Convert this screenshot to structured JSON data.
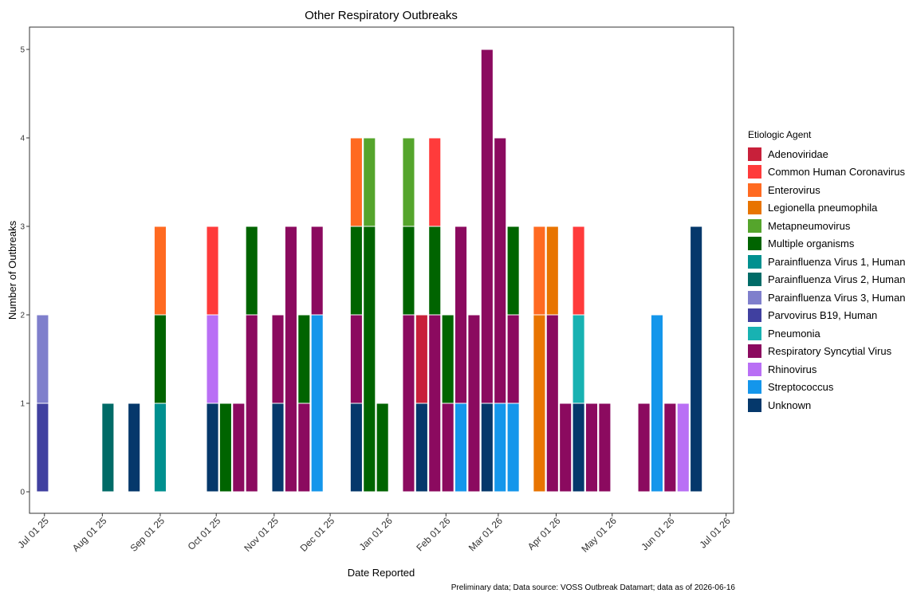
{
  "chart_data": {
    "type": "bar",
    "stacked": true,
    "title": "Other Respiratory Outbreaks",
    "xlabel": "Date Reported",
    "ylabel": "Number of Outbreaks",
    "ylim": [
      0,
      5.5
    ],
    "y_ticks": [
      0,
      1,
      2,
      3,
      4,
      5
    ],
    "x_range": [
      "2025-06-23",
      "2026-07-05"
    ],
    "x_ticks": [
      {
        "date": "2025-07-01",
        "label": "Jul 01 25"
      },
      {
        "date": "2025-08-01",
        "label": "Aug 01 25"
      },
      {
        "date": "2025-09-01",
        "label": "Sep 01 25"
      },
      {
        "date": "2025-10-01",
        "label": "Oct 01 25"
      },
      {
        "date": "2025-11-01",
        "label": "Nov 01 25"
      },
      {
        "date": "2025-12-01",
        "label": "Dec 01 25"
      },
      {
        "date": "2026-01-01",
        "label": "Jan 01 26"
      },
      {
        "date": "2026-02-01",
        "label": "Feb 01 26"
      },
      {
        "date": "2026-03-01",
        "label": "Mar 01 26"
      },
      {
        "date": "2026-04-01",
        "label": "Apr 01 26"
      },
      {
        "date": "2026-05-01",
        "label": "May 01 26"
      },
      {
        "date": "2026-06-01",
        "label": "Jun 01 26"
      },
      {
        "date": "2026-07-01",
        "label": "Jul 01 26"
      }
    ],
    "grid": false,
    "legend_position": "right",
    "legend_title": "Etiologic Agent",
    "series": [
      {
        "name": "Adenoviridae",
        "color": "#C8203A"
      },
      {
        "name": "Common Human Coronavirus",
        "color": "#FF3B3B"
      },
      {
        "name": "Enterovirus",
        "color": "#FF6A21"
      },
      {
        "name": "Legionella pneumophila",
        "color": "#E87400"
      },
      {
        "name": "Metapneumovirus",
        "color": "#55A52C"
      },
      {
        "name": "Multiple organisms",
        "color": "#006400"
      },
      {
        "name": "Parainfluenza Virus 1, Human",
        "color": "#00908F"
      },
      {
        "name": "Parainfluenza Virus 2, Human",
        "color": "#006B67"
      },
      {
        "name": "Parainfluenza Virus 3, Human",
        "color": "#7F7FCC"
      },
      {
        "name": "Parvovirus B19, Human",
        "color": "#4040A0"
      },
      {
        "name": "Pneumonia",
        "color": "#18B2B2"
      },
      {
        "name": "Respiratory Syncytial Virus",
        "color": "#8B0A5F"
      },
      {
        "name": "Rhinovirus",
        "color": "#B96FF5"
      },
      {
        "name": "Streptococcus",
        "color": "#1496EB"
      },
      {
        "name": "Unknown",
        "color": "#05386B"
      }
    ],
    "bars": [
      {
        "date": "2025-06-30",
        "segments": [
          {
            "agent": "Parvovirus B19, Human",
            "value": 1
          },
          {
            "agent": "Parainfluenza Virus 3, Human",
            "value": 1
          }
        ]
      },
      {
        "date": "2025-08-04",
        "segments": [
          {
            "agent": "Parainfluenza Virus 2, Human",
            "value": 1
          }
        ]
      },
      {
        "date": "2025-08-18",
        "segments": [
          {
            "agent": "Unknown",
            "value": 1
          }
        ]
      },
      {
        "date": "2025-09-01",
        "segments": [
          {
            "agent": "Parainfluenza Virus 1, Human",
            "value": 1
          },
          {
            "agent": "Multiple organisms",
            "value": 1
          },
          {
            "agent": "Enterovirus",
            "value": 1
          }
        ]
      },
      {
        "date": "2025-09-29",
        "segments": [
          {
            "agent": "Unknown",
            "value": 1
          },
          {
            "agent": "Rhinovirus",
            "value": 1
          },
          {
            "agent": "Common Human Coronavirus",
            "value": 1
          }
        ]
      },
      {
        "date": "2025-10-06",
        "segments": [
          {
            "agent": "Multiple organisms",
            "value": 1
          }
        ]
      },
      {
        "date": "2025-10-13",
        "segments": [
          {
            "agent": "Respiratory Syncytial Virus",
            "value": 1
          }
        ]
      },
      {
        "date": "2025-10-20",
        "segments": [
          {
            "agent": "Respiratory Syncytial Virus",
            "value": 2
          },
          {
            "agent": "Multiple organisms",
            "value": 1
          }
        ]
      },
      {
        "date": "2025-11-03",
        "segments": [
          {
            "agent": "Unknown",
            "value": 1
          },
          {
            "agent": "Respiratory Syncytial Virus",
            "value": 1
          }
        ]
      },
      {
        "date": "2025-11-10",
        "segments": [
          {
            "agent": "Respiratory Syncytial Virus",
            "value": 3
          }
        ]
      },
      {
        "date": "2025-11-17",
        "segments": [
          {
            "agent": "Respiratory Syncytial Virus",
            "value": 1
          },
          {
            "agent": "Multiple organisms",
            "value": 1
          }
        ]
      },
      {
        "date": "2025-11-24",
        "segments": [
          {
            "agent": "Streptococcus",
            "value": 2
          },
          {
            "agent": "Respiratory Syncytial Virus",
            "value": 1
          }
        ]
      },
      {
        "date": "2025-12-15",
        "segments": [
          {
            "agent": "Unknown",
            "value": 1
          },
          {
            "agent": "Respiratory Syncytial Virus",
            "value": 1
          },
          {
            "agent": "Multiple organisms",
            "value": 1
          },
          {
            "agent": "Enterovirus",
            "value": 1
          }
        ]
      },
      {
        "date": "2025-12-22",
        "segments": [
          {
            "agent": "Multiple organisms",
            "value": 3
          },
          {
            "agent": "Metapneumovirus",
            "value": 1
          }
        ]
      },
      {
        "date": "2025-12-29",
        "segments": [
          {
            "agent": "Multiple organisms",
            "value": 1
          }
        ]
      },
      {
        "date": "2026-01-12",
        "segments": [
          {
            "agent": "Respiratory Syncytial Virus",
            "value": 2
          },
          {
            "agent": "Multiple organisms",
            "value": 1
          },
          {
            "agent": "Metapneumovirus",
            "value": 1
          }
        ]
      },
      {
        "date": "2026-01-19",
        "segments": [
          {
            "agent": "Unknown",
            "value": 1
          },
          {
            "agent": "Adenoviridae",
            "value": 1
          }
        ]
      },
      {
        "date": "2026-01-26",
        "segments": [
          {
            "agent": "Respiratory Syncytial Virus",
            "value": 2
          },
          {
            "agent": "Multiple organisms",
            "value": 1
          },
          {
            "agent": "Common Human Coronavirus",
            "value": 1
          }
        ]
      },
      {
        "date": "2026-02-02",
        "segments": [
          {
            "agent": "Respiratory Syncytial Virus",
            "value": 1
          },
          {
            "agent": "Multiple organisms",
            "value": 1
          }
        ]
      },
      {
        "date": "2026-02-09",
        "segments": [
          {
            "agent": "Streptococcus",
            "value": 1
          },
          {
            "agent": "Respiratory Syncytial Virus",
            "value": 2
          }
        ]
      },
      {
        "date": "2026-02-16",
        "segments": [
          {
            "agent": "Respiratory Syncytial Virus",
            "value": 2
          }
        ]
      },
      {
        "date": "2026-02-23",
        "segments": [
          {
            "agent": "Unknown",
            "value": 1
          },
          {
            "agent": "Respiratory Syncytial Virus",
            "value": 4
          }
        ]
      },
      {
        "date": "2026-03-02",
        "segments": [
          {
            "agent": "Streptococcus",
            "value": 1
          },
          {
            "agent": "Respiratory Syncytial Virus",
            "value": 3
          }
        ]
      },
      {
        "date": "2026-03-09",
        "segments": [
          {
            "agent": "Streptococcus",
            "value": 1
          },
          {
            "agent": "Respiratory Syncytial Virus",
            "value": 1
          },
          {
            "agent": "Multiple organisms",
            "value": 1
          }
        ]
      },
      {
        "date": "2026-03-23",
        "segments": [
          {
            "agent": "Legionella pneumophila",
            "value": 2
          },
          {
            "agent": "Enterovirus",
            "value": 1
          }
        ]
      },
      {
        "date": "2026-03-30",
        "segments": [
          {
            "agent": "Respiratory Syncytial Virus",
            "value": 2
          },
          {
            "agent": "Legionella pneumophila",
            "value": 1
          }
        ]
      },
      {
        "date": "2026-04-06",
        "segments": [
          {
            "agent": "Respiratory Syncytial Virus",
            "value": 1
          }
        ]
      },
      {
        "date": "2026-04-13",
        "segments": [
          {
            "agent": "Unknown",
            "value": 1
          },
          {
            "agent": "Pneumonia",
            "value": 1
          },
          {
            "agent": "Common Human Coronavirus",
            "value": 1
          }
        ]
      },
      {
        "date": "2026-04-20",
        "segments": [
          {
            "agent": "Respiratory Syncytial Virus",
            "value": 1
          }
        ]
      },
      {
        "date": "2026-04-27",
        "segments": [
          {
            "agent": "Respiratory Syncytial Virus",
            "value": 1
          }
        ]
      },
      {
        "date": "2026-05-18",
        "segments": [
          {
            "agent": "Respiratory Syncytial Virus",
            "value": 1
          }
        ]
      },
      {
        "date": "2026-05-25",
        "segments": [
          {
            "agent": "Streptococcus",
            "value": 2
          }
        ]
      },
      {
        "date": "2026-06-01",
        "segments": [
          {
            "agent": "Respiratory Syncytial Virus",
            "value": 1
          }
        ]
      },
      {
        "date": "2026-06-08",
        "segments": [
          {
            "agent": "Rhinovirus",
            "value": 1
          }
        ]
      },
      {
        "date": "2026-06-15",
        "segments": [
          {
            "agent": "Unknown",
            "value": 3
          }
        ]
      }
    ],
    "caption": "Preliminary data; Data source: VOSS Outbreak Datamart; data as of 2026-06-16"
  }
}
